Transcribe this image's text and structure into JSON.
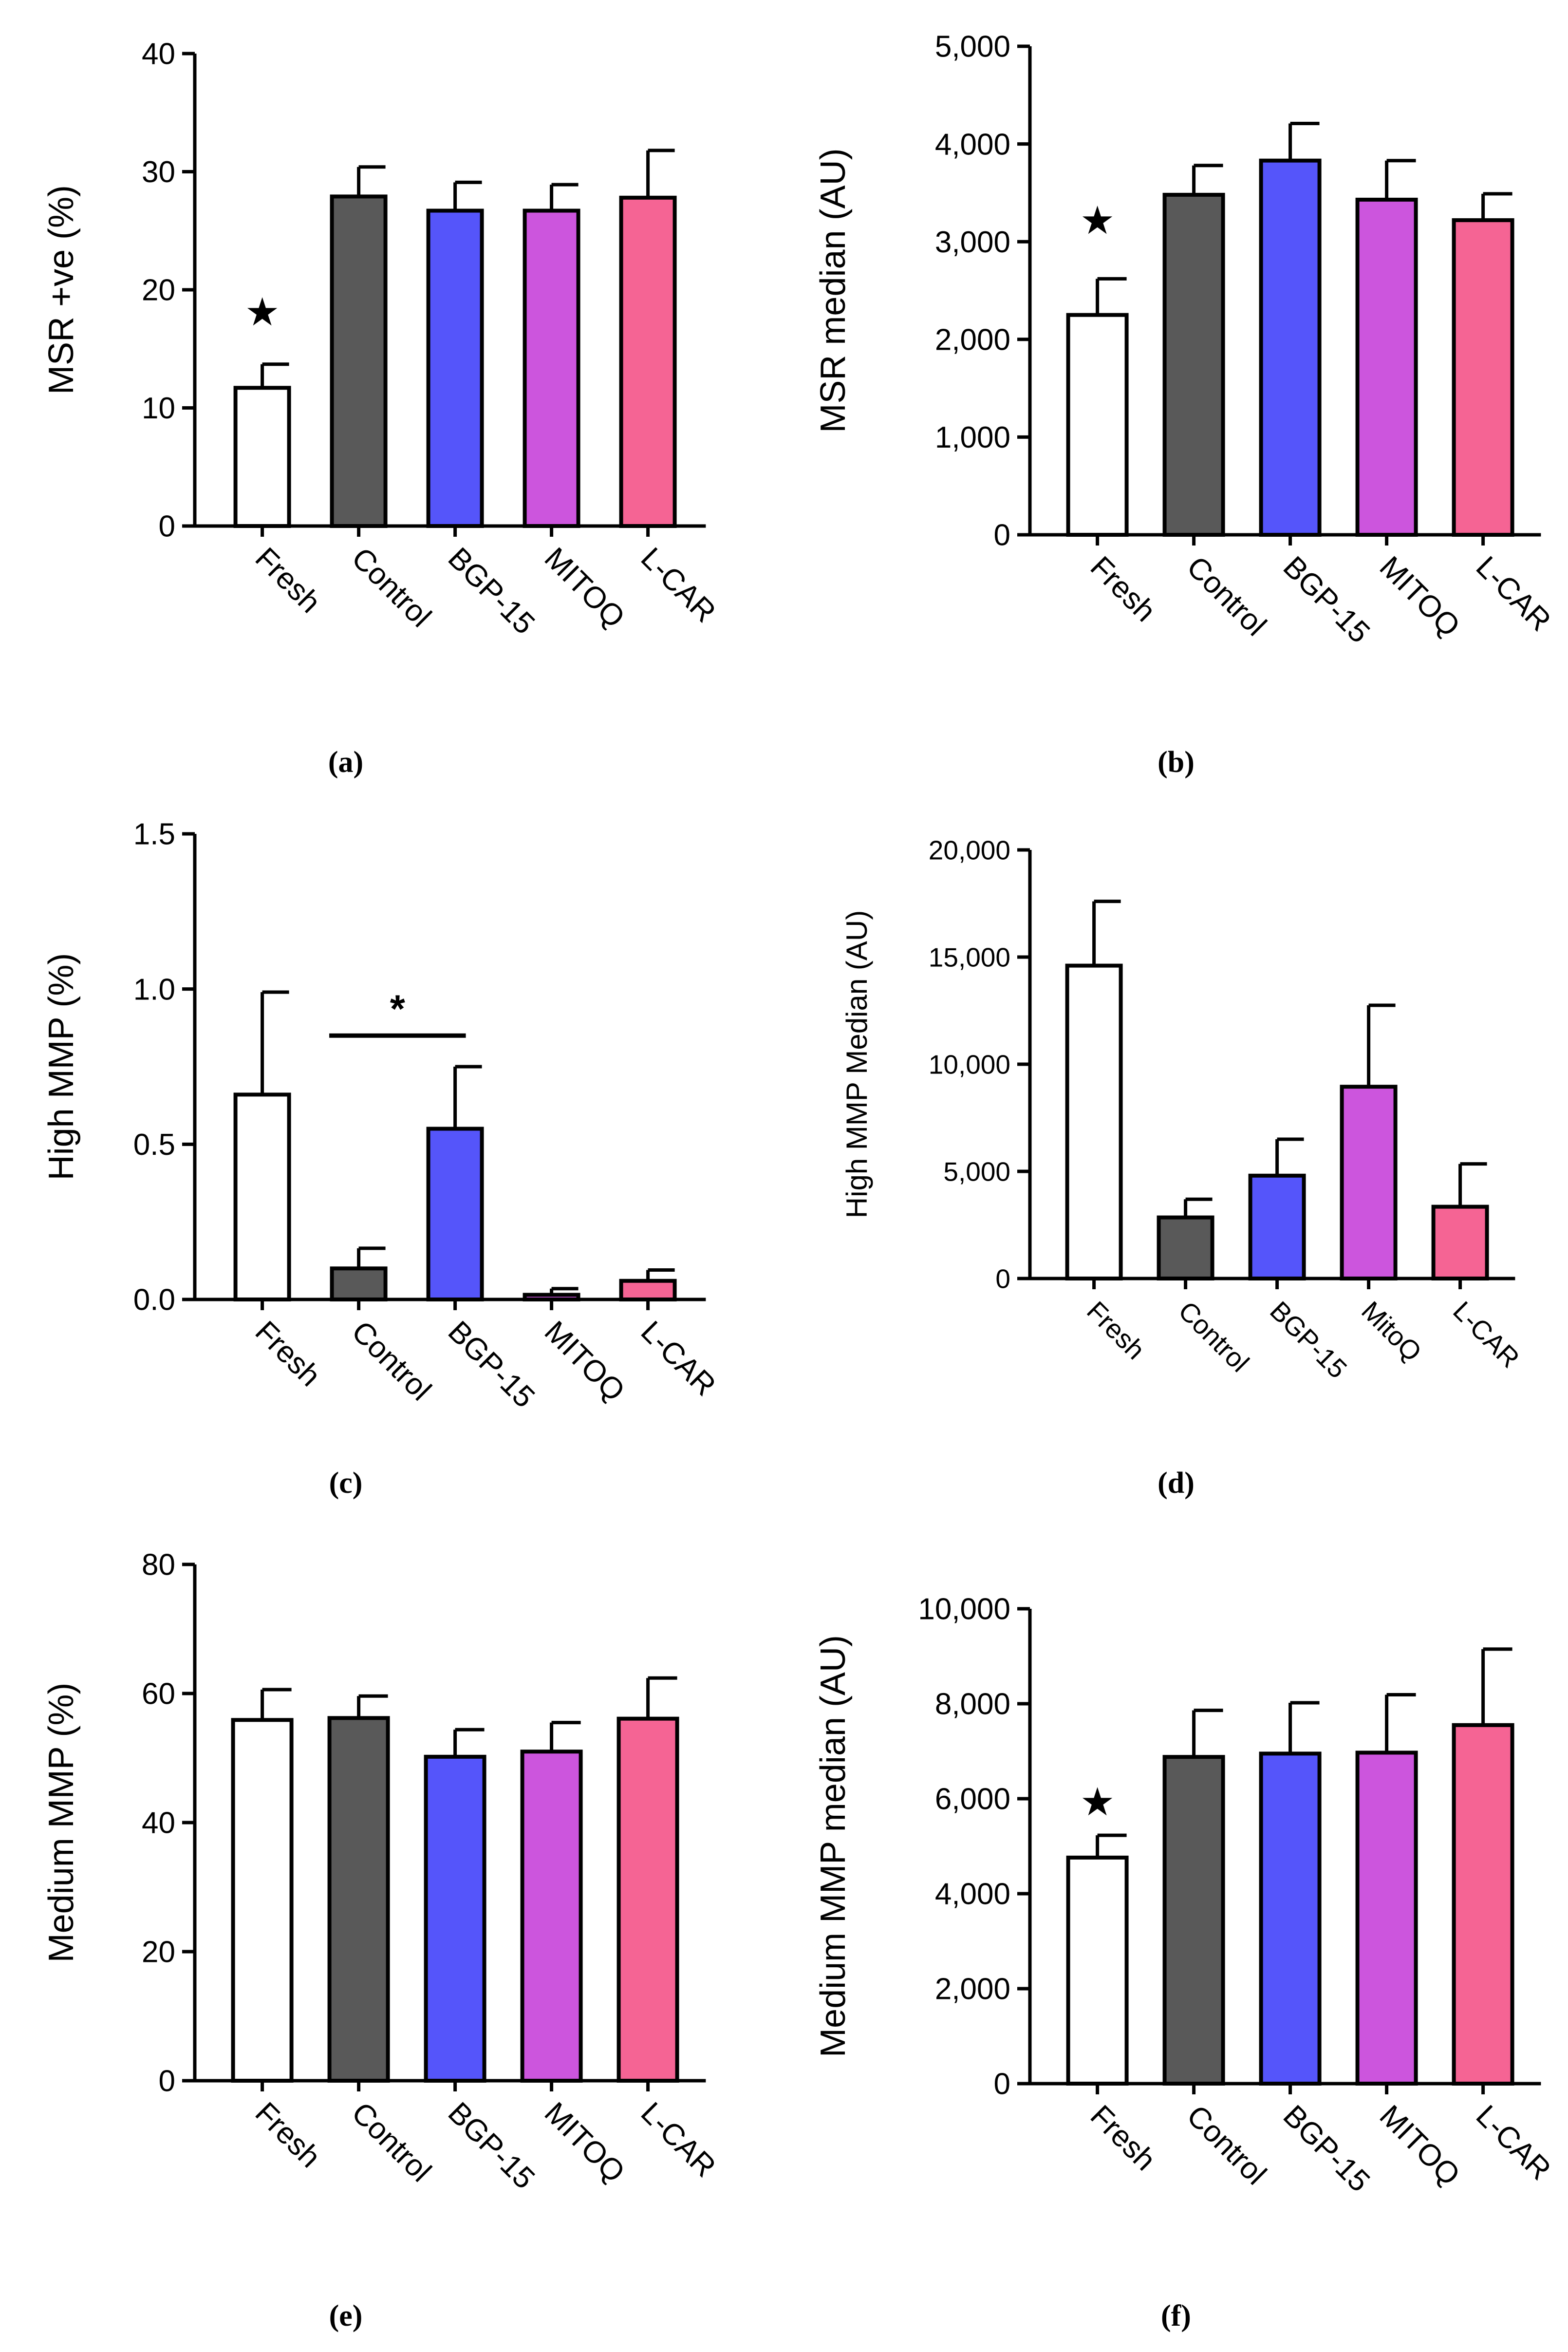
{
  "figure": {
    "panels": [
      "a",
      "b",
      "c",
      "d",
      "e",
      "f"
    ]
  },
  "colors": {
    "Fresh": "#ffffff",
    "Control": "#595959",
    "BGP-15": "#5555fa",
    "MITOQ": "#cc55dd",
    "L-CAR": "#f56494",
    "axis": "#000000"
  },
  "chart_data": [
    {
      "id": "a",
      "type": "bar",
      "caption": "(a)",
      "ylabel": "MSR +ve (%)",
      "categories": [
        "Fresh",
        "Control",
        "BGP-15",
        "MITOQ",
        "L-CAR"
      ],
      "values": [
        11.7,
        27.9,
        26.7,
        26.7,
        27.8
      ],
      "errors": [
        2.0,
        2.5,
        2.4,
        2.2,
        4.0
      ],
      "ylim": [
        0,
        40
      ],
      "yticks": [
        0,
        10,
        20,
        30,
        40
      ],
      "ytick_labels": [
        "0",
        "10",
        "20",
        "30",
        "40"
      ],
      "annotations": [
        {
          "symbol": "★",
          "category": "Fresh",
          "value": 17
        }
      ]
    },
    {
      "id": "b",
      "type": "bar",
      "caption": "(b)",
      "ylabel": "MSR median (AU)",
      "categories": [
        "Fresh",
        "Control",
        "BGP-15",
        "MITOQ",
        "L-CAR"
      ],
      "values": [
        2250,
        3480,
        3830,
        3430,
        3220
      ],
      "errors": [
        370,
        300,
        380,
        400,
        270
      ],
      "ylim": [
        0,
        5000
      ],
      "yticks": [
        0,
        1000,
        2000,
        3000,
        4000,
        5000
      ],
      "ytick_labels": [
        "0",
        "1,000",
        "2,000",
        "3,000",
        "4,000",
        "5,000"
      ],
      "annotations": [
        {
          "symbol": "★",
          "category": "Fresh",
          "value": 3080
        }
      ]
    },
    {
      "id": "c",
      "type": "bar",
      "caption": "(c)",
      "ylabel": "High MMP (%)",
      "categories": [
        "Fresh",
        "Control",
        "BGP-15",
        "MITOQ",
        "L-CAR"
      ],
      "values": [
        0.66,
        0.1,
        0.55,
        0.015,
        0.06
      ],
      "errors": [
        0.33,
        0.065,
        0.2,
        0.02,
        0.035
      ],
      "ylim": [
        0,
        1.5
      ],
      "yticks": [
        0,
        0.5,
        1.0,
        1.5
      ],
      "ytick_labels": [
        "0.0",
        "0.5",
        "1.0",
        "1.5"
      ],
      "annotations": [
        {
          "symbol": "*",
          "bracket": [
            "Control",
            "BGP-15"
          ],
          "value": 0.85
        }
      ]
    },
    {
      "id": "d",
      "type": "bar",
      "caption": "(d)",
      "ylabel": "High MMP Median (AU)",
      "categories": [
        "Fresh",
        "Control",
        "BGP-15",
        "MitoQ",
        "L-CAR"
      ],
      "values": [
        14600,
        2850,
        4800,
        8950,
        3350
      ],
      "errors": [
        3000,
        850,
        1700,
        3800,
        2000
      ],
      "ylim": [
        0,
        20000
      ],
      "yticks": [
        0,
        5000,
        10000,
        15000,
        20000
      ],
      "ytick_labels": [
        "0",
        "5,000",
        "10,000",
        "15,000",
        "20,000"
      ],
      "annotations": []
    },
    {
      "id": "e",
      "type": "bar",
      "caption": "(e)",
      "ylabel": "Medium MMP (%)",
      "categories": [
        "Fresh",
        "Control",
        "BGP-15",
        "MITOQ",
        "L-CAR"
      ],
      "values": [
        55.9,
        56.2,
        50.2,
        51.0,
        56.1
      ],
      "errors": [
        4.7,
        3.4,
        4.2,
        4.5,
        6.3
      ],
      "ylim": [
        0,
        80
      ],
      "yticks": [
        0,
        20,
        40,
        60,
        80
      ],
      "ytick_labels": [
        "0",
        "20",
        "40",
        "60",
        "80"
      ],
      "annotations": []
    },
    {
      "id": "f",
      "type": "bar",
      "caption": "(f)",
      "ylabel": "Medium MMP median (AU)",
      "categories": [
        "Fresh",
        "Control",
        "BGP-15",
        "MITOQ",
        "L-CAR"
      ],
      "values": [
        4760,
        6880,
        6950,
        6970,
        7550
      ],
      "errors": [
        470,
        980,
        1070,
        1220,
        1600
      ],
      "ylim": [
        0,
        10000
      ],
      "yticks": [
        0,
        2000,
        4000,
        6000,
        8000,
        10000
      ],
      "ytick_labels": [
        "0",
        "2,000",
        "4,000",
        "6,000",
        "8,000",
        "10,000"
      ],
      "annotations": [
        {
          "symbol": "★",
          "category": "Fresh",
          "value": 5650
        }
      ]
    }
  ]
}
